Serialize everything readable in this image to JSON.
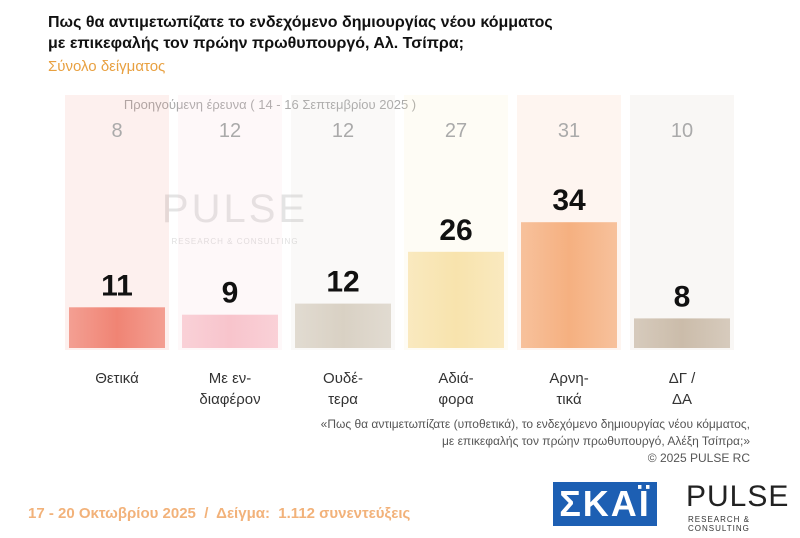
{
  "chart_data": {
    "type": "bar",
    "title": "Πως θα αντιμετωπίζατε το ενδεχόμενο δημιουργίας νέου κόμματος\nμε επικεφαλής τον πρώην πρωθυπουργό, Αλ. Τσίπρα;",
    "subtitle": "Σύνολο δείγματος",
    "categories": [
      "Θετικά",
      "Με εν-\nδιαφέρον",
      "Ουδέ-\nτερα",
      "Αδιά-\nφορα",
      "Αρνη-\nτικά",
      "ΔΓ /\nΔΑ"
    ],
    "values": [
      11,
      9,
      12,
      26,
      34,
      8
    ],
    "colors": [
      "#f08474",
      "#f8c4cc",
      "#d9d1c4",
      "#f8e3ad",
      "#f5b080",
      "#cbbcaa"
    ],
    "previous": {
      "label": "Προηγούμενη έρευνα ( 14 - 16 Σεπτεμβρίου 2025 )",
      "values": [
        8,
        12,
        12,
        27,
        31,
        10
      ]
    },
    "watermark": {
      "name": "PULSE",
      "sub": "RESEARCH & CONSULTING"
    },
    "notes": [
      "«Πως θα αντιμετωπίζατε (υποθετικά), το ενδεχόμενο δημιουργίας νέου κόμματος,",
      "με επικεφαλής τον πρώην πρωθυπουργό, Αλέξη Τσίπρα;»",
      "©  2025  PULSE RC"
    ],
    "footer": "17 - 20 Οκτωβρίου 2025  /  Δείγμα:  1.112 συνεντεύξεις",
    "logos": {
      "skai": "ΣΚΑΪ",
      "pulse": "PULSE",
      "pulse_sub": "RESEARCH & CONSULTING"
    }
  }
}
